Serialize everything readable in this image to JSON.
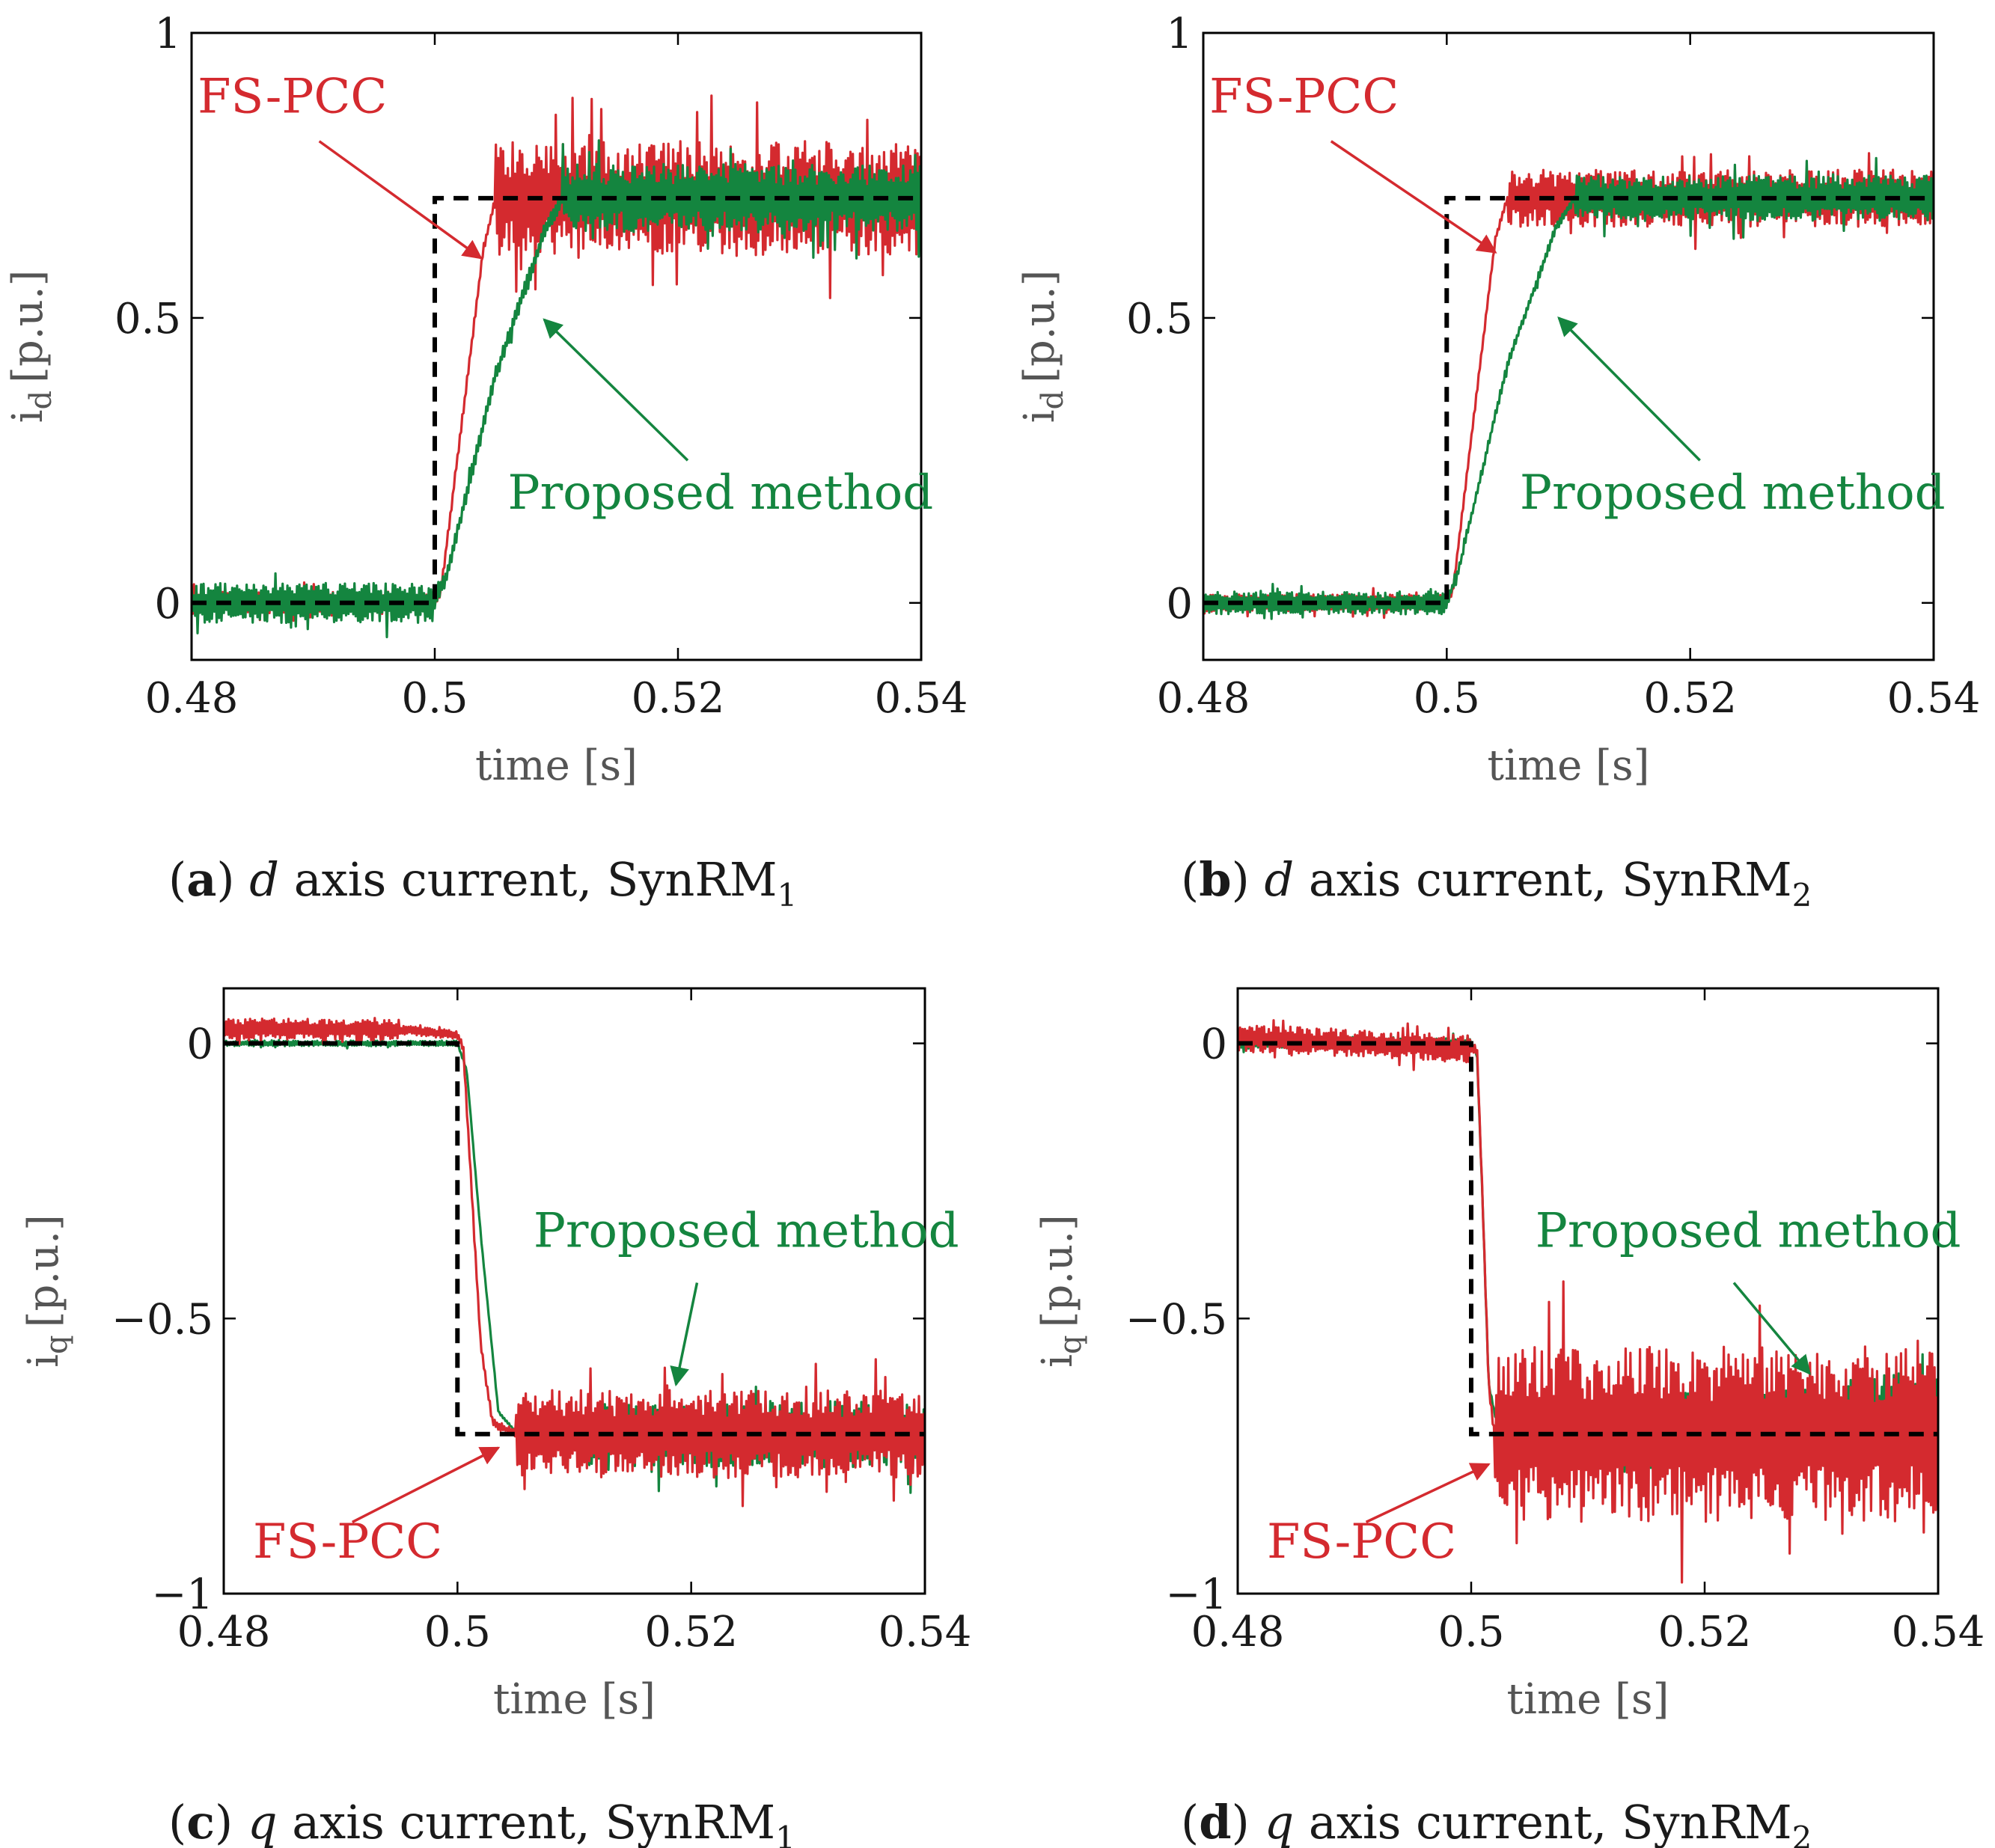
{
  "colors": {
    "fs_pcc": "#d42a2f",
    "proposed": "#14853f",
    "reference": "#000000",
    "axis": "#000000",
    "label_gray": "#555555"
  },
  "chart_data": [
    {
      "id": "a",
      "type": "line",
      "caption": {
        "letter": "a",
        "axis": "d",
        "text": "axis current, SynRM",
        "subscript": "1"
      },
      "xlabel": "time [s]",
      "ylabel": {
        "base": "i",
        "sub": "d",
        "unit": "[p.u.]"
      },
      "xlim": [
        0.48,
        0.54
      ],
      "ylim": [
        -0.1,
        1.0
      ],
      "xticks": [
        0.48,
        0.5,
        0.52,
        0.54
      ],
      "xtick_labels": [
        "0.48",
        "0.5",
        "0.52",
        "0.54"
      ],
      "yticks": [
        0,
        0.5,
        1
      ],
      "ytick_labels": [
        "0",
        "0.5",
        "1"
      ],
      "grid": false,
      "series": [
        {
          "name": "FS-PCC",
          "key": "fs_pcc",
          "x": [
            0.48,
            0.5,
            0.5005,
            0.504,
            0.505,
            0.54
          ],
          "y": [
            0,
            0,
            0.02,
            0.62,
            0.71,
            0.71
          ],
          "ripple_pre": 0.02,
          "ripple_post": 0.1
        },
        {
          "name": "Proposed method",
          "key": "proposed",
          "x": [
            0.48,
            0.5,
            0.501,
            0.505,
            0.509,
            0.5105,
            0.54
          ],
          "y": [
            0,
            0,
            0.05,
            0.4,
            0.65,
            0.71,
            0.71
          ],
          "ripple_pre": 0.035,
          "ripple_post": 0.06
        },
        {
          "name": "reference",
          "key": "reference",
          "x": [
            0.48,
            0.5,
            0.5,
            0.54
          ],
          "y": [
            0,
            0,
            0.71,
            0.71
          ]
        }
      ],
      "annotations": [
        {
          "text": "FS-PCC",
          "key": "fs_pcc",
          "label_at": [
            0.4805,
            0.86
          ],
          "arrow_from": [
            0.4905,
            0.81
          ],
          "arrow_to": [
            0.5038,
            0.605
          ]
        },
        {
          "text": "Proposed method",
          "key": "proposed",
          "label_at": [
            0.506,
            0.165
          ],
          "arrow_from": [
            0.5208,
            0.25
          ],
          "arrow_to": [
            0.509,
            0.497
          ]
        }
      ]
    },
    {
      "id": "b",
      "type": "line",
      "caption": {
        "letter": "b",
        "axis": "d",
        "text": "axis current, SynRM",
        "subscript": "2"
      },
      "xlabel": "time [s]",
      "ylabel": {
        "base": "i",
        "sub": "d",
        "unit": "[p.u.]"
      },
      "xlim": [
        0.48,
        0.54
      ],
      "ylim": [
        -0.1,
        1.0
      ],
      "xticks": [
        0.48,
        0.5,
        0.52,
        0.54
      ],
      "xtick_labels": [
        "0.48",
        "0.5",
        "0.52",
        "0.54"
      ],
      "yticks": [
        0,
        0.5,
        1
      ],
      "ytick_labels": [
        "0",
        "0.5",
        "1"
      ],
      "grid": false,
      "series": [
        {
          "name": "FS-PCC",
          "key": "fs_pcc",
          "x": [
            0.48,
            0.5,
            0.5005,
            0.504,
            0.505,
            0.54
          ],
          "y": [
            0,
            0,
            0.02,
            0.64,
            0.71,
            0.71
          ],
          "ripple_pre": 0.015,
          "ripple_post": 0.05
        },
        {
          "name": "Proposed method",
          "key": "proposed",
          "x": [
            0.48,
            0.5,
            0.501,
            0.505,
            0.509,
            0.5105,
            0.54
          ],
          "y": [
            0,
            0,
            0.06,
            0.42,
            0.66,
            0.71,
            0.71
          ],
          "ripple_pre": 0.02,
          "ripple_post": 0.04
        },
        {
          "name": "reference",
          "key": "reference",
          "x": [
            0.48,
            0.5,
            0.5,
            0.54
          ],
          "y": [
            0,
            0,
            0.71,
            0.71
          ]
        }
      ],
      "annotations": [
        {
          "text": "FS-PCC",
          "key": "fs_pcc",
          "label_at": [
            0.4805,
            0.86
          ],
          "arrow_from": [
            0.4905,
            0.81
          ],
          "arrow_to": [
            0.504,
            0.615
          ]
        },
        {
          "text": "Proposed method",
          "key": "proposed",
          "label_at": [
            0.506,
            0.165
          ],
          "arrow_from": [
            0.5208,
            0.25
          ],
          "arrow_to": [
            0.5092,
            0.5
          ]
        }
      ]
    },
    {
      "id": "c",
      "type": "line",
      "caption": {
        "letter": "c",
        "axis": "q",
        "text": "axis current, SynRM",
        "subscript": "1"
      },
      "xlabel": "time [s]",
      "ylabel": {
        "base": "i",
        "sub": "q",
        "unit": "[p.u.]"
      },
      "xlim": [
        0.48,
        0.54
      ],
      "ylim": [
        -1.0,
        0.1
      ],
      "xticks": [
        0.48,
        0.5,
        0.52,
        0.54
      ],
      "xtick_labels": [
        "0.48",
        "0.5",
        "0.52",
        "0.54"
      ],
      "yticks": [
        -1,
        -0.5,
        0
      ],
      "ytick_labels": [
        "−1",
        "−0.5",
        "0"
      ],
      "grid": false,
      "series": [
        {
          "name": "FS-PCC",
          "key": "fs_pcc",
          "x": [
            0.48,
            0.495,
            0.5,
            0.5005,
            0.502,
            0.503,
            0.505,
            0.54
          ],
          "y": [
            0.025,
            0.025,
            0.015,
            -0.01,
            -0.55,
            -0.69,
            -0.71,
            -0.71
          ],
          "ripple_pre": 0.02,
          "ripple_post": 0.08
        },
        {
          "name": "Proposed method",
          "key": "proposed",
          "x": [
            0.48,
            0.5,
            0.5008,
            0.502,
            0.5035,
            0.506,
            0.511,
            0.54
          ],
          "y": [
            0,
            0,
            -0.05,
            -0.35,
            -0.67,
            -0.73,
            -0.71,
            -0.71
          ],
          "ripple_pre": 0.005,
          "ripple_post": 0.06
        },
        {
          "name": "reference",
          "key": "reference",
          "x": [
            0.48,
            0.5,
            0.5,
            0.54
          ],
          "y": [
            0,
            0,
            -0.71,
            -0.71
          ]
        }
      ],
      "annotations": [
        {
          "text": "FS-PCC",
          "key": "fs_pcc",
          "label_at": [
            0.4825,
            -0.935
          ],
          "arrow_from": [
            0.491,
            -0.87
          ],
          "arrow_to": [
            0.5035,
            -0.735
          ]
        },
        {
          "text": "Proposed method",
          "key": "proposed",
          "label_at": [
            0.5065,
            -0.37
          ],
          "arrow_from": [
            0.5205,
            -0.435
          ],
          "arrow_to": [
            0.5187,
            -0.62
          ]
        }
      ]
    },
    {
      "id": "d",
      "type": "line",
      "caption": {
        "letter": "d",
        "axis": "q",
        "text": "axis current, SynRM",
        "subscript": "2"
      },
      "xlabel": "time [s]",
      "ylabel": {
        "base": "i",
        "sub": "q",
        "unit": "[p.u.]"
      },
      "xlim": [
        0.48,
        0.54
      ],
      "ylim": [
        -1.0,
        0.1
      ],
      "xticks": [
        0.48,
        0.5,
        0.52,
        0.54
      ],
      "xtick_labels": [
        "0.48",
        "0.5",
        "0.52",
        "0.54"
      ],
      "yticks": [
        -1,
        -0.5,
        0
      ],
      "ytick_labels": [
        "−1",
        "−0.5",
        "0"
      ],
      "grid": false,
      "series": [
        {
          "name": "FS-PCC",
          "key": "fs_pcc",
          "x": [
            0.48,
            0.5,
            0.5005,
            0.501,
            0.5015,
            0.502,
            0.54
          ],
          "y": [
            0.01,
            -0.01,
            -0.01,
            -0.3,
            -0.62,
            -0.71,
            -0.71
          ],
          "ripple_pre": 0.025,
          "ripple_post": 0.16
        },
        {
          "name": "Proposed method",
          "key": "proposed",
          "x": [
            0.48,
            0.5,
            0.5005,
            0.501,
            0.5015,
            0.5025,
            0.509,
            0.51,
            0.54
          ],
          "y": [
            0,
            0,
            -0.02,
            -0.3,
            -0.62,
            -0.72,
            -0.74,
            -0.72,
            -0.66
          ],
          "ripple_pre": 0.01,
          "ripple_post": 0.07
        },
        {
          "name": "reference",
          "key": "reference",
          "x": [
            0.48,
            0.5,
            0.5,
            0.54
          ],
          "y": [
            0,
            0,
            -0.71,
            -0.71
          ]
        }
      ],
      "annotations": [
        {
          "text": "FS-PCC",
          "key": "fs_pcc",
          "label_at": [
            0.4825,
            -0.935
          ],
          "arrow_from": [
            0.491,
            -0.87
          ],
          "arrow_to": [
            0.5015,
            -0.765
          ]
        },
        {
          "text": "Proposed method",
          "key": "proposed",
          "label_at": [
            0.5055,
            -0.37
          ],
          "arrow_from": [
            0.5225,
            -0.435
          ],
          "arrow_to": [
            0.529,
            -0.6
          ]
        }
      ]
    }
  ]
}
